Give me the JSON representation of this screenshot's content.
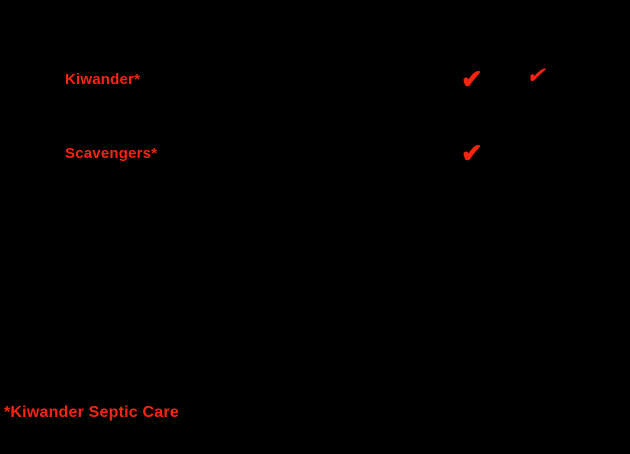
{
  "canvas": {
    "background_color": "#000000",
    "accent_color": "#fa2410"
  },
  "comparison_table": {
    "rows": [
      {
        "label": "Kiwander*",
        "checks": {
          "column_1": true,
          "column_2": true
        }
      },
      {
        "label": "Scavengers*",
        "checks": {
          "column_1": true,
          "column_2": false
        }
      }
    ]
  },
  "footnote": {
    "text": "*Kiwander Septic Care"
  },
  "icons": {
    "check": "✔"
  }
}
